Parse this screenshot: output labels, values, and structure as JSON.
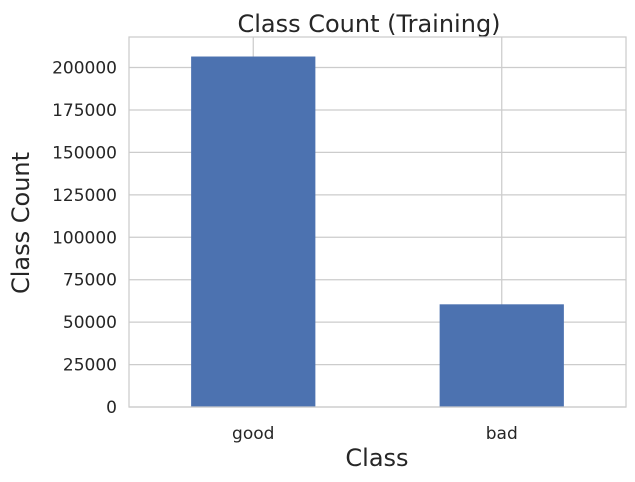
{
  "chart_data": {
    "type": "bar",
    "title": "Class Count (Training)",
    "xlabel": "Class",
    "ylabel": "Class Count",
    "categories": [
      "good",
      "bad"
    ],
    "values": [
      206500,
      60500
    ],
    "ylim": [
      0,
      218000
    ],
    "yticks": [
      0,
      25000,
      50000,
      75000,
      100000,
      125000,
      150000,
      175000,
      200000
    ],
    "ytick_labels": [
      "0",
      "25000",
      "50000",
      "75000",
      "100000",
      "125000",
      "150000",
      "175000",
      "200000"
    ],
    "grid": true,
    "legend": "none",
    "colors": {
      "bar": "#4c72b0",
      "grid": "#cccccc",
      "spine": "#cccccc",
      "text": "#262626",
      "background": "#ffffff"
    }
  }
}
